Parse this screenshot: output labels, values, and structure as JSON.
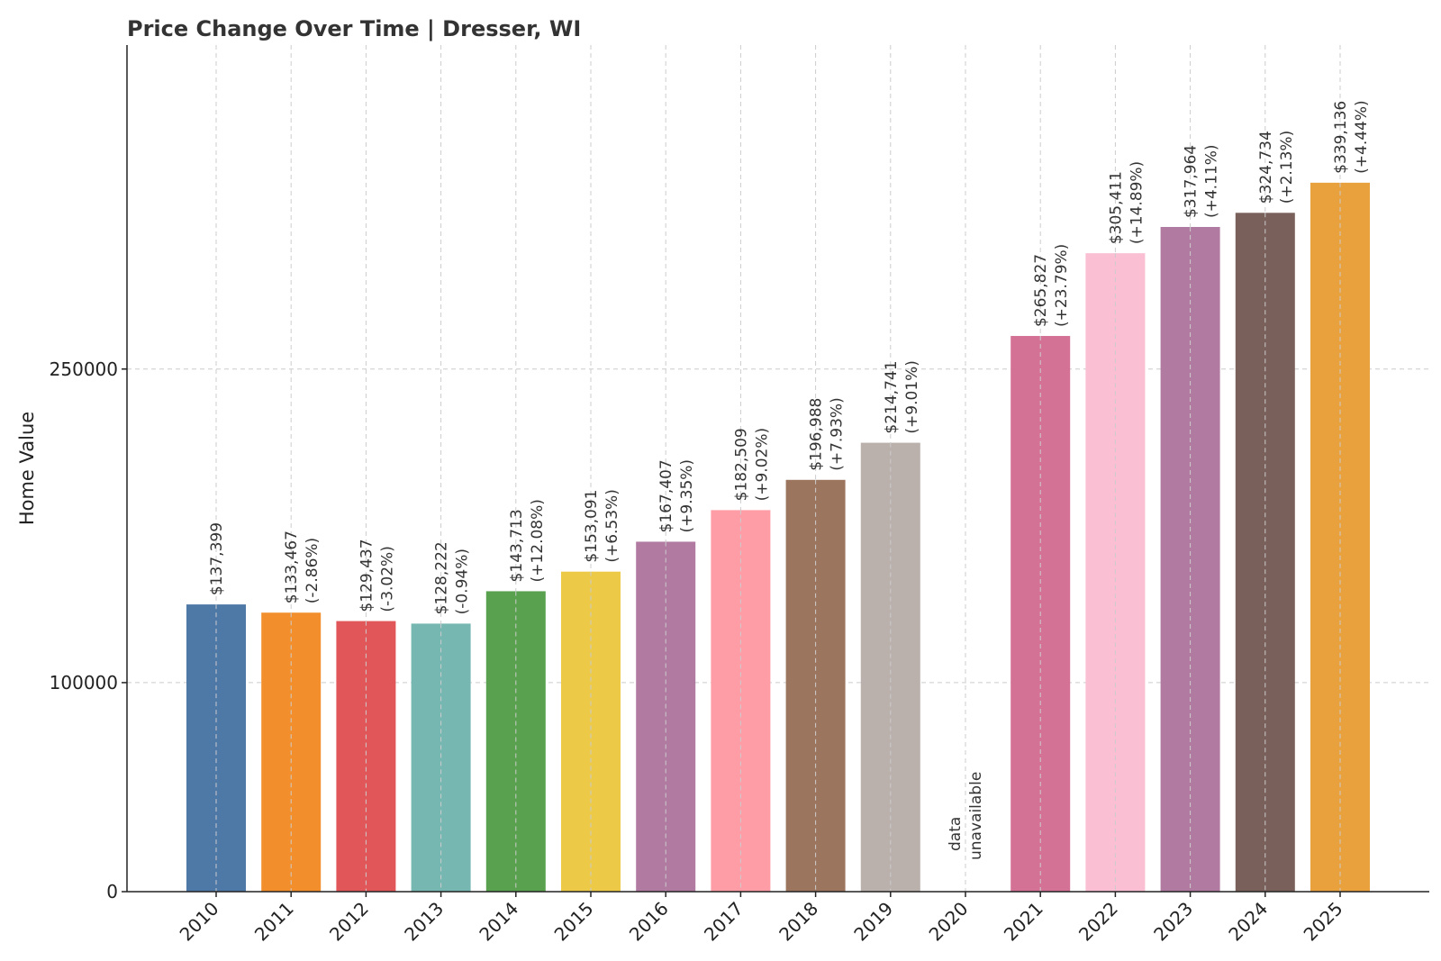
{
  "chart_data": {
    "type": "bar",
    "title": "Price Change Over Time | Dresser, WI",
    "xlabel": "",
    "ylabel": "Home Value",
    "ylim": [
      0,
      405000
    ],
    "yticks": [
      0,
      100000,
      250000
    ],
    "ytick_labels": [
      "0",
      "100000",
      "250000"
    ],
    "grid": true,
    "categories": [
      "2010",
      "2011",
      "2012",
      "2013",
      "2014",
      "2015",
      "2016",
      "2017",
      "2018",
      "2019",
      "2020",
      "2021",
      "2022",
      "2023",
      "2024",
      "2025"
    ],
    "values": [
      137399,
      133467,
      129437,
      128222,
      143713,
      153091,
      167407,
      182509,
      196988,
      214741,
      null,
      265827,
      305411,
      317964,
      324734,
      339136
    ],
    "value_labels": [
      "$137,399",
      "$133,467",
      "$129,437",
      "$128,222",
      "$143,713",
      "$153,091",
      "$167,407",
      "$182,509",
      "$196,988",
      "$214,741",
      "",
      "$265,827",
      "$305,411",
      "$317,964",
      "$324,734",
      "$339,136"
    ],
    "change_labels": [
      "",
      "(-2.86%)",
      "(-3.02%)",
      "(-0.94%)",
      "(+12.08%)",
      "(+6.53%)",
      "(+9.35%)",
      "(+9.02%)",
      "(+7.93%)",
      "(+9.01%)",
      "",
      "(+23.79%)",
      "(+14.89%)",
      "(+4.11%)",
      "(+2.13%)",
      "(+4.44%)"
    ],
    "missing_label": [
      "data",
      "unavailable"
    ],
    "colors": [
      "#4e79a7",
      "#f28e2b",
      "#e15759",
      "#76b7b2",
      "#59a14f",
      "#edc948",
      "#b07aa1",
      "#ff9da7",
      "#9c755f",
      "#bab0ac",
      "#ffffff",
      "#d37295",
      "#fabfd2",
      "#b07aa1",
      "#79605a",
      "#e8a13c"
    ]
  }
}
